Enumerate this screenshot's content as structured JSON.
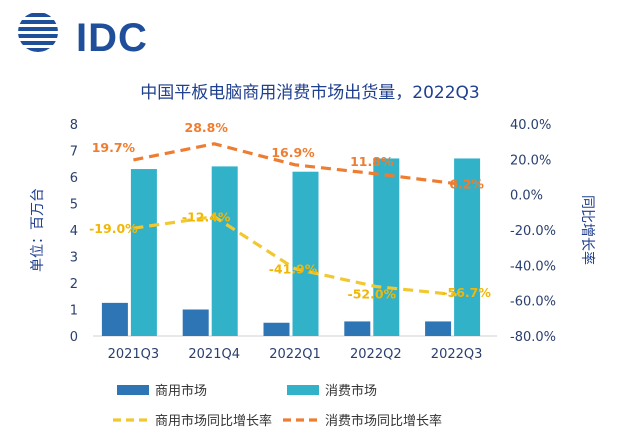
{
  "brand": {
    "name": "IDC"
  },
  "chart_data": {
    "type": "bar",
    "title": "中国平板电脑商用消费市场出货量，2022Q3",
    "categories": [
      "2021Q3",
      "2021Q4",
      "2022Q1",
      "2022Q2",
      "2022Q3"
    ],
    "ylabel": "单位：百万台",
    "y2label": "同比增长率",
    "ylim": [
      0,
      8
    ],
    "y2lim": [
      -80,
      40
    ],
    "yticks": [
      "0",
      "1",
      "2",
      "3",
      "4",
      "5",
      "6",
      "7",
      "8"
    ],
    "y2ticks": [
      "-80.0%",
      "-60.0%",
      "-40.0%",
      "-20.0%",
      "0.0%",
      "20.0%",
      "40.0%"
    ],
    "grid": false,
    "legend_position": "bottom",
    "series": [
      {
        "name": "商用市场",
        "kind": "bar",
        "axis": "left",
        "color": "#2e75b6",
        "values": [
          1.25,
          1.0,
          0.5,
          0.55,
          0.55
        ]
      },
      {
        "name": "消费市场",
        "kind": "bar",
        "axis": "left",
        "color": "#31b2c9",
        "values": [
          6.3,
          6.4,
          6.2,
          6.7,
          6.7
        ]
      },
      {
        "name": "商用市场同比增长率",
        "kind": "line",
        "axis": "right",
        "color": "#f2c830",
        "dash": true,
        "values": [
          -19.0,
          -12.4,
          -41.9,
          -52.0,
          -56.7
        ],
        "labels": [
          "-19.0%",
          "-12.4%",
          "-41.9%",
          "-52.0%",
          "-56.7%"
        ]
      },
      {
        "name": "消费市场同比增长率",
        "kind": "line",
        "axis": "right",
        "color": "#ee7d31",
        "dash": true,
        "values": [
          19.7,
          28.8,
          16.9,
          11.8,
          6.2
        ],
        "labels": [
          "19.7%",
          "28.8%",
          "16.9%",
          "11.8%",
          "6.2%"
        ]
      }
    ]
  }
}
